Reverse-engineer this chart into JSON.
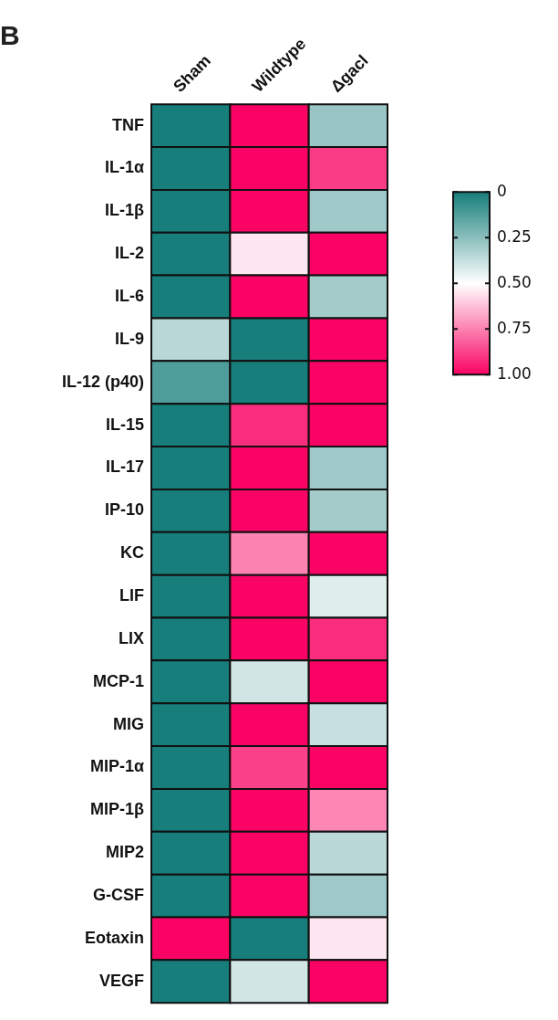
{
  "chart_data": {
    "type": "heatmap",
    "annotations": [
      "B"
    ],
    "categories": [
      "Sham",
      "Wildtype",
      "Δgacl"
    ],
    "y_categories": [
      "TNF",
      "IL-1α",
      "IL-1β",
      "IL-2",
      "IL-6",
      "IL-9",
      "IL-12 (p40)",
      "IL-15",
      "IL-17",
      "IP-10",
      "KC",
      "LIF",
      "LIX",
      "MCP-1",
      "MIG",
      "MIP-1α",
      "MIP-1β",
      "MIP2",
      "G-CSF",
      "Eotaxin",
      "VEGF"
    ],
    "cells": [
      [
        0,
        1,
        0.28
      ],
      [
        0,
        1,
        0.89
      ],
      [
        0,
        1,
        0.29
      ],
      [
        0,
        0.55,
        1
      ],
      [
        0,
        1,
        0.3
      ],
      [
        0.35,
        0,
        1
      ],
      [
        0.12,
        0,
        1
      ],
      [
        0,
        0.92,
        1
      ],
      [
        0,
        1,
        0.29
      ],
      [
        0,
        1,
        0.3
      ],
      [
        0,
        0.75,
        1
      ],
      [
        0,
        1,
        0.43
      ],
      [
        0,
        1,
        0.92
      ],
      [
        0,
        0.4,
        1
      ],
      [
        0,
        1,
        0.38
      ],
      [
        0,
        0.88,
        1
      ],
      [
        0,
        1,
        0.74
      ],
      [
        0,
        1,
        0.35
      ],
      [
        0,
        1,
        0.29
      ],
      [
        1,
        0,
        0.55
      ],
      [
        0,
        0.4,
        1
      ]
    ],
    "clim": [
      0,
      1
    ],
    "cticks": [
      0,
      0.25,
      {
        "value": 0.5,
        "label": "0.50"
      },
      0.75,
      {
        "value": 1,
        "label": "1.00"
      }
    ]
  }
}
